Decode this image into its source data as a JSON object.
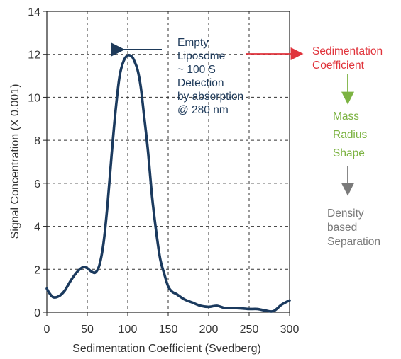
{
  "chart_data": {
    "type": "line",
    "xlabel": "Sedimentation Coefficient (Svedberg)",
    "ylabel": "Signal Concentration (X 0.001)",
    "xlim": [
      0,
      300
    ],
    "ylim": [
      0,
      14
    ],
    "x_ticks": [
      0,
      50,
      100,
      150,
      200,
      250,
      300
    ],
    "y_ticks": [
      0,
      2,
      4,
      6,
      8,
      10,
      12,
      14
    ],
    "grid": true,
    "series": [
      {
        "color": "#1b3a5e",
        "x": [
          0,
          3,
          8,
          15,
          22,
          30,
          38,
          45,
          50,
          55,
          60,
          65,
          70,
          75,
          80,
          85,
          90,
          95,
          100,
          105,
          108,
          112,
          116,
          120,
          125,
          130,
          135,
          140,
          145,
          150,
          155,
          160,
          170,
          180,
          190,
          200,
          210,
          220,
          230,
          240,
          250,
          260,
          270,
          280,
          290,
          300
        ],
        "y": [
          1.1,
          0.9,
          0.7,
          0.75,
          1.0,
          1.5,
          1.9,
          2.1,
          2.05,
          1.9,
          1.85,
          2.2,
          3.2,
          5.0,
          7.3,
          9.4,
          11.0,
          11.7,
          11.95,
          11.9,
          11.7,
          11.3,
          10.5,
          9.2,
          7.5,
          5.4,
          3.8,
          2.5,
          1.8,
          1.2,
          0.95,
          0.85,
          0.6,
          0.45,
          0.3,
          0.25,
          0.3,
          0.2,
          0.2,
          0.18,
          0.15,
          0.15,
          0.08,
          0.05,
          0.35,
          0.55
        ]
      }
    ],
    "annotations": {
      "peak_note": [
        "Empty",
        "Liposome",
        "~ 100 S",
        "Detection",
        "by absorption",
        "@ 280 nm"
      ],
      "flow": [
        {
          "lines": [
            "Sedimentation",
            "Coefficient"
          ],
          "color": "#e0333b"
        },
        {
          "lines": [
            "Mass",
            "Radius",
            "Shape"
          ],
          "color": "#7cb342"
        },
        {
          "lines": [
            "Density",
            "based",
            "Separation"
          ],
          "color": "#7a7a7a"
        }
      ]
    }
  }
}
